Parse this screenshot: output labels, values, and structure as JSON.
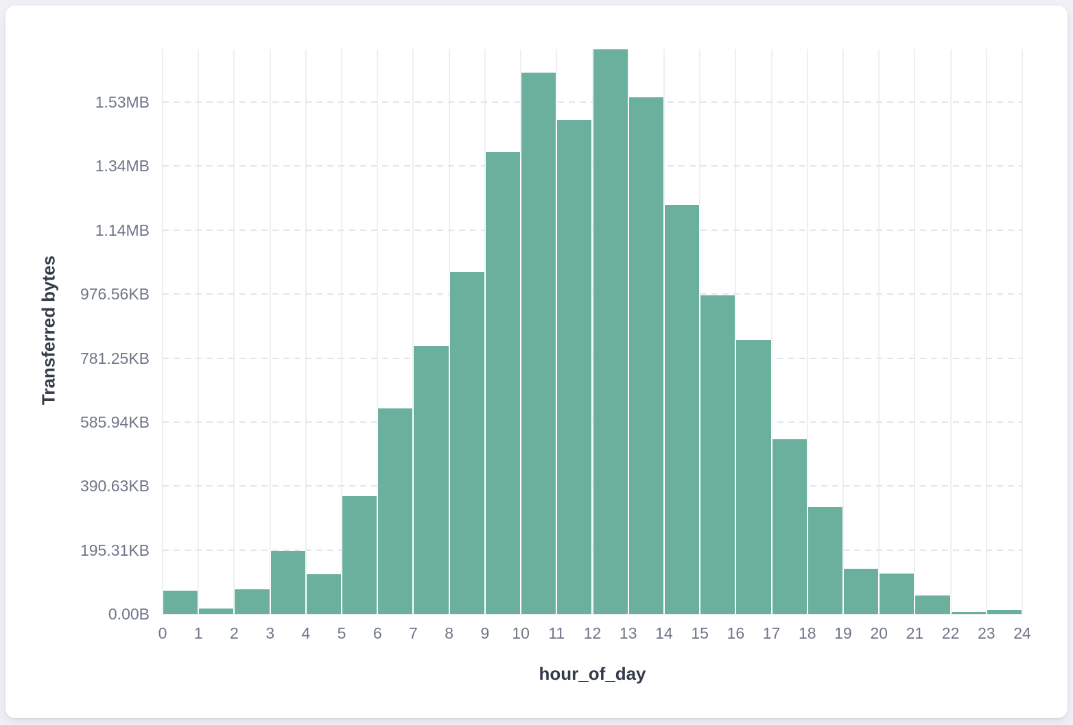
{
  "page": {
    "background_color": "#eff1f6",
    "card_background_color": "#ffffff"
  },
  "chart_data": {
    "type": "bar",
    "title": "",
    "xlabel": "hour_of_day",
    "ylabel": "Transferred bytes",
    "x_tick_labels": [
      "0",
      "1",
      "2",
      "3",
      "4",
      "5",
      "6",
      "7",
      "8",
      "9",
      "10",
      "11",
      "12",
      "13",
      "14",
      "15",
      "16",
      "17",
      "18",
      "19",
      "20",
      "21",
      "22",
      "23",
      "24"
    ],
    "y_axis": {
      "tick_labels": [
        "0.00B",
        "195.31KB",
        "390.63KB",
        "585.94KB",
        "781.25KB",
        "976.56KB",
        "1.14MB",
        "1.34MB",
        "1.53MB"
      ],
      "tick_bytes": [
        0,
        200000,
        400000,
        600000,
        800000,
        1000000,
        1200000,
        1400000,
        1600000
      ],
      "max_bytes": 1765000
    },
    "bins": {
      "hour_start": [
        0,
        1,
        2,
        3,
        4,
        5,
        6,
        7,
        8,
        9,
        10,
        11,
        12,
        13,
        14,
        15,
        16,
        17,
        18,
        19,
        20,
        21,
        22,
        23
      ],
      "values_bytes": [
        73000,
        16500,
        77000,
        198000,
        125000,
        368000,
        642000,
        838000,
        1068000,
        1443000,
        1692000,
        1544000,
        1765000,
        1615000,
        1279000,
        997000,
        857000,
        546000,
        334000,
        141000,
        126000,
        57000,
        6000,
        13000
      ]
    },
    "bar_color": "#6bb09c",
    "grid": {
      "vertical_line_color": "#edeff3",
      "horizontal_dashed_color": "#e2e5ec",
      "legend": "none"
    }
  }
}
